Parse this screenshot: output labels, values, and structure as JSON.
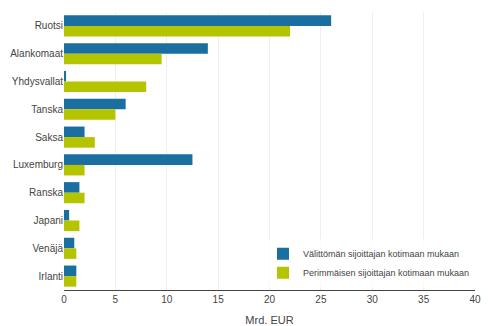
{
  "chart_data": {
    "type": "bar",
    "orientation": "horizontal",
    "categories": [
      "Ruotsi",
      "Alankomaat",
      "Yhdysvallat",
      "Tanska",
      "Saksa",
      "Luxemburg",
      "Ranska",
      "Japani",
      "Venäjä",
      "Irlanti"
    ],
    "series": [
      {
        "name": "Välittömän sijoittajan kotimaan mukaan",
        "color": "#1a6fa0",
        "values": [
          26.0,
          14.0,
          0.2,
          6.0,
          2.0,
          12.5,
          1.5,
          0.5,
          1.0,
          1.2
        ]
      },
      {
        "name": "Perimmäisen sijoittajan kotimaan mukaan",
        "color": "#b5c400",
        "values": [
          22.0,
          9.5,
          8.0,
          5.0,
          3.0,
          2.0,
          2.0,
          1.5,
          1.2,
          1.2
        ]
      }
    ],
    "xlabel": "Mrd. EUR",
    "xlim": [
      0,
      40
    ],
    "xticks": [
      0,
      5,
      10,
      15,
      20,
      25,
      30,
      35,
      40
    ],
    "grid": true,
    "legend": "lower right"
  }
}
